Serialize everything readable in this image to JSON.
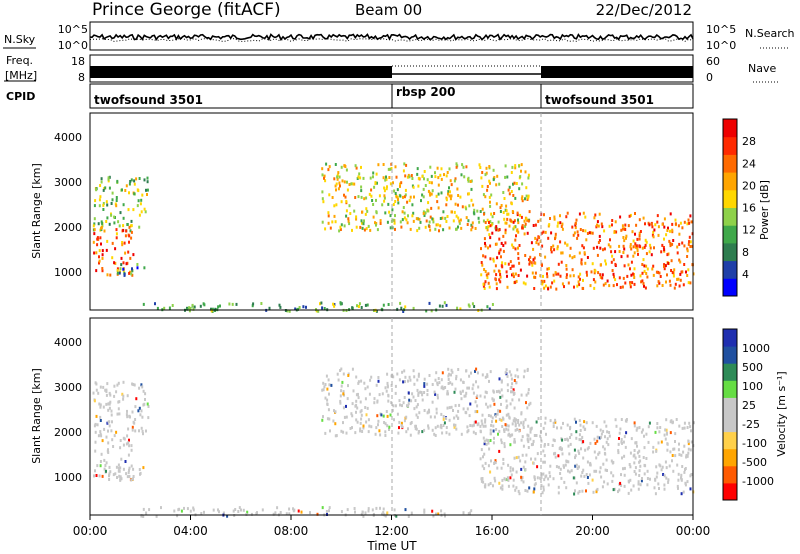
{
  "header": {
    "station": "Prince George (fitACF)",
    "beam": "Beam 00",
    "date": "22/Dec/2012"
  },
  "noise_panel": {
    "left_label": "N.Sky",
    "left_ticks": [
      "10^5",
      "10^0"
    ],
    "right_label": "N.Search",
    "right_ticks": [
      "10^5",
      "10^0"
    ]
  },
  "freq_panel": {
    "left_label_line1": "Freq.",
    "left_label_line2": "[MHz]",
    "left_ticks": [
      "18",
      "8"
    ],
    "right_label": "Nave",
    "right_ticks": [
      "60",
      "0"
    ]
  },
  "cpid_panel": {
    "label": "CPID",
    "segments": [
      {
        "name": "twofsound 3501",
        "start_hour": 0,
        "end_hour": 12
      },
      {
        "name": "rbsp 200",
        "start_hour": 12,
        "end_hour": 18
      },
      {
        "name": "twofsound 3501",
        "start_hour": 18,
        "end_hour": 24
      }
    ]
  },
  "x_axis": {
    "label": "Time UT",
    "ticks": [
      "00:00",
      "04:00",
      "08:00",
      "12:00",
      "16:00",
      "20:00",
      "00:00"
    ]
  },
  "colors": {
    "power_scale": [
      "#0000ff",
      "#1f3fa8",
      "#2e7d4f",
      "#3fa84a",
      "#8ed14a",
      "#ffd700",
      "#ffa500",
      "#ff6a00",
      "#ff2a00",
      "#ee0000"
    ],
    "velocity_scale": [
      "#ff0000",
      "#ff5a00",
      "#ffa500",
      "#ffd04a",
      "#c8c8c8",
      "#c8c8c8",
      "#66dd44",
      "#2e8b57",
      "#2050a0",
      "#1f2fb0"
    ]
  },
  "chart_data": [
    {
      "type": "heatmap",
      "title": "Power",
      "ylabel": "Slant Range [km]",
      "ylim": [
        200,
        4600
      ],
      "yticks": [
        "1000",
        "2000",
        "3000",
        "4000"
      ],
      "xlim_hours": [
        0,
        24
      ],
      "colorbar": {
        "label": "Power [dB]",
        "ticks": [
          "4",
          "8",
          "12",
          "16",
          "20",
          "24",
          "28"
        ],
        "range": [
          0,
          32
        ]
      },
      "echo_regions": [
        {
          "name": "early_band_upper",
          "start_hour": 0.1,
          "end_hour": 2.3,
          "range_start_km": 2000,
          "range_end_km": 3200,
          "power_db": 14
        },
        {
          "name": "early_band_lower",
          "start_hour": 0.1,
          "end_hour": 1.7,
          "range_start_km": 1000,
          "range_end_km": 2100,
          "power_db": 24
        },
        {
          "name": "early_small_patch",
          "start_hour": 1.0,
          "end_hour": 2.2,
          "range_start_km": 1000,
          "range_end_km": 1300,
          "power_db": 8
        },
        {
          "name": "midday_arc",
          "start_hour": 9.2,
          "end_hour": 17.5,
          "range_start_km": 2000,
          "range_end_km": 3500,
          "power_db": 18
        },
        {
          "name": "evening_band",
          "start_hour": 15.5,
          "end_hour": 24,
          "range_start_km": 700,
          "range_end_km": 2400,
          "power_db": 26
        },
        {
          "name": "near_range_clutter",
          "start_hour": 2,
          "end_hour": 16,
          "range_start_km": 200,
          "range_end_km": 400,
          "power_db": 10
        }
      ]
    },
    {
      "type": "heatmap",
      "title": "Velocity",
      "ylabel": "Slant Range [km]",
      "ylim": [
        200,
        4600
      ],
      "yticks": [
        "1000",
        "2000",
        "3000",
        "4000"
      ],
      "xlim_hours": [
        0,
        24
      ],
      "colorbar": {
        "label": "Velocity [m s⁻¹]",
        "ticks": [
          "1000",
          "500",
          "100",
          "25",
          "-25",
          "-100",
          "-500",
          "-1000"
        ],
        "range": [
          -1000,
          1000
        ]
      },
      "dominant_velocity_ms": [
        -25,
        25
      ]
    }
  ]
}
